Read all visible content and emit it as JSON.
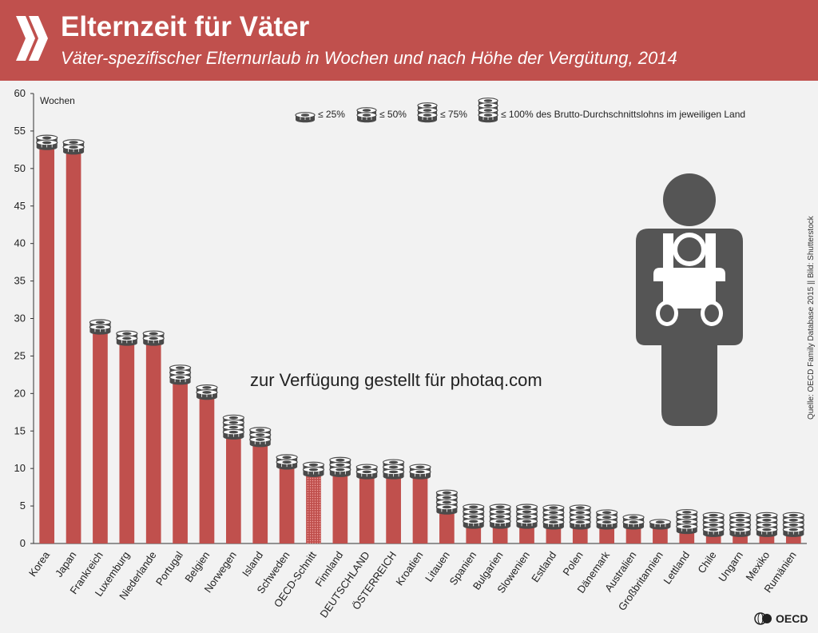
{
  "header": {
    "title": "Elternzeit für Väter",
    "subtitle": "Väter-spezifischer Elternurlaub in Wochen und nach Höhe der Vergütung, 2014",
    "logo_icon": "double-chevron-icon"
  },
  "source": "Quelle: OECD Family Database 2015 || Bild: Shutterstock",
  "watermark": "zur Verfügung gestellt für photaq.com",
  "oecd_logo": "OECD",
  "colors": {
    "header": "#c0504d",
    "bar": "#c0504d",
    "background": "#f2f2f2",
    "icon": "#555555"
  },
  "chart_data": {
    "type": "bar",
    "ylabel": "Wochen",
    "ylim": [
      0,
      60
    ],
    "yticks": [
      0,
      5,
      10,
      15,
      20,
      25,
      30,
      35,
      40,
      45,
      50,
      55,
      60
    ],
    "categories": [
      "Korea",
      "Japan",
      "Frankreich",
      "Luxemburg",
      "Niederlande",
      "Portugal",
      "Belgien",
      "Norwegen",
      "Island",
      "Schweden",
      "OECD-Schnitt",
      "Finnland",
      "DEUTSCHLAND",
      "ÖSTERREICH",
      "Kroatien",
      "Litauen",
      "Spanien",
      "Bulgarien",
      "Slowenien",
      "Estland",
      "Polen",
      "Dänemark",
      "Australien",
      "Großbritannien",
      "Lettland",
      "Chile",
      "Ungarn",
      "Mexiko",
      "Rumänien"
    ],
    "values": [
      52.6,
      52.0,
      28.0,
      26.5,
      26.5,
      21.3,
      19.3,
      14.0,
      13.0,
      10.0,
      9.0,
      9.0,
      8.7,
      8.7,
      8.7,
      4.0,
      2.1,
      2.1,
      2.1,
      2.0,
      2.0,
      2.0,
      2.0,
      2.0,
      1.4,
      1.0,
      1.0,
      1.0,
      1.0
    ],
    "payment_level": [
      1,
      1,
      1,
      1,
      1,
      2,
      1,
      3,
      2,
      1,
      1,
      2,
      1,
      2,
      1,
      3,
      3,
      3,
      3,
      3,
      3,
      2,
      1,
      0,
      3,
      3,
      3,
      3,
      3
    ],
    "highlight": "OECD-Schnitt",
    "legend": {
      "items": [
        "≤ 25%",
        "≤ 50%",
        "≤ 75%",
        "≤ 100% des Brutto-Durchschnittslohns im jeweiligen Land"
      ],
      "placement": "top-right"
    },
    "illustration": "father-with-baby-carrier-icon"
  }
}
